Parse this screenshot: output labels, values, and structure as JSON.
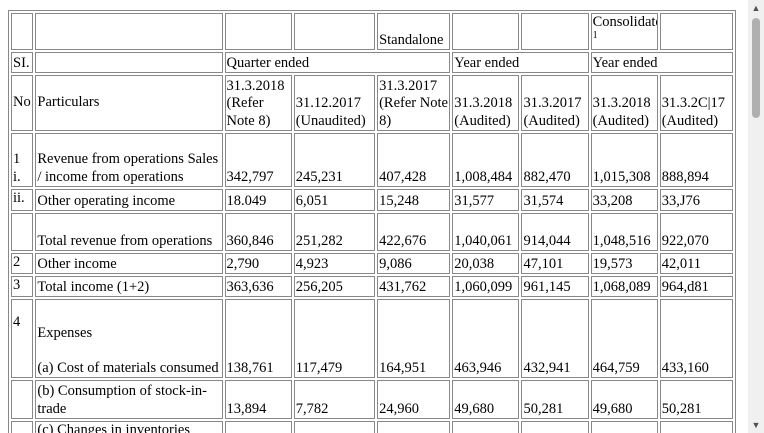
{
  "header": {
    "standalone": "Standalone",
    "consolidated": "Consolidated",
    "consolidated_note": "1",
    "si": "SI.",
    "no": "No",
    "particulars": "Particulars",
    "quarter_ended": "Quarter ended",
    "year_ended_standalone": "Year ended",
    "year_ended_consolidated": "Year ended",
    "columns": [
      "31.3.2018 (Refer Note 8)",
      "31.12.2017 (Unaudited)",
      "31.3.2017 (Refer Note 8)",
      "31.3.2018 (Audited)",
      "31.3.2017 (Audited)",
      "31.3.2018 (Audited)",
      "31.3.2C|17 (Audited)"
    ]
  },
  "rows": [
    {
      "sl": "1\ni.",
      "particulars": "Revenue from operations Sales / income from operations",
      "values": [
        "342,797",
        "245,231",
        "407,428",
        "1,008,484",
        "882,470",
        "1,015,308",
        "888,894"
      ]
    },
    {
      "sl": "ii.",
      "particulars": "Other operating income",
      "values": [
        "18.049",
        "6,051",
        "15,248",
        "31,577",
        "31,574",
        "33,208",
        "33,J76"
      ]
    },
    {
      "sl": "",
      "particulars": "Total revenue from operations",
      "values": [
        "360,846",
        "251,282",
        "422,676",
        "1,040,061",
        "914,044",
        "1,048,516",
        "922,070"
      ]
    },
    {
      "sl": "2",
      "particulars": "Other income",
      "values": [
        "2,790",
        "4,923",
        "9,086",
        "20,038",
        "47,101",
        "19,573",
        "42,011"
      ]
    },
    {
      "sl": "3",
      "particulars": "Total income (1+2)",
      "values": [
        "363,636",
        "256,205",
        "431,762",
        "1,060,099",
        "961,145",
        "1,068,089",
        "964,d81"
      ]
    },
    {
      "sl": "4",
      "particulars": "Expenses\n\n(a) Cost of materials consumed",
      "values": [
        "138,761",
        "117,479",
        "164,951",
        "463,946",
        "432,941",
        "464,759",
        "433,160"
      ]
    },
    {
      "sl": "",
      "particulars": "(b) Consumption of stock-in-trade",
      "values": [
        "13,894",
        "7,782",
        "24,960",
        "49,680",
        "50,281",
        "49,680",
        "50,281"
      ]
    },
    {
      "sl": "",
      "particulars": "(c) Changes in inventories",
      "values": [
        "",
        "",
        "",
        "",
        "",
        "",
        ""
      ]
    }
  ]
}
